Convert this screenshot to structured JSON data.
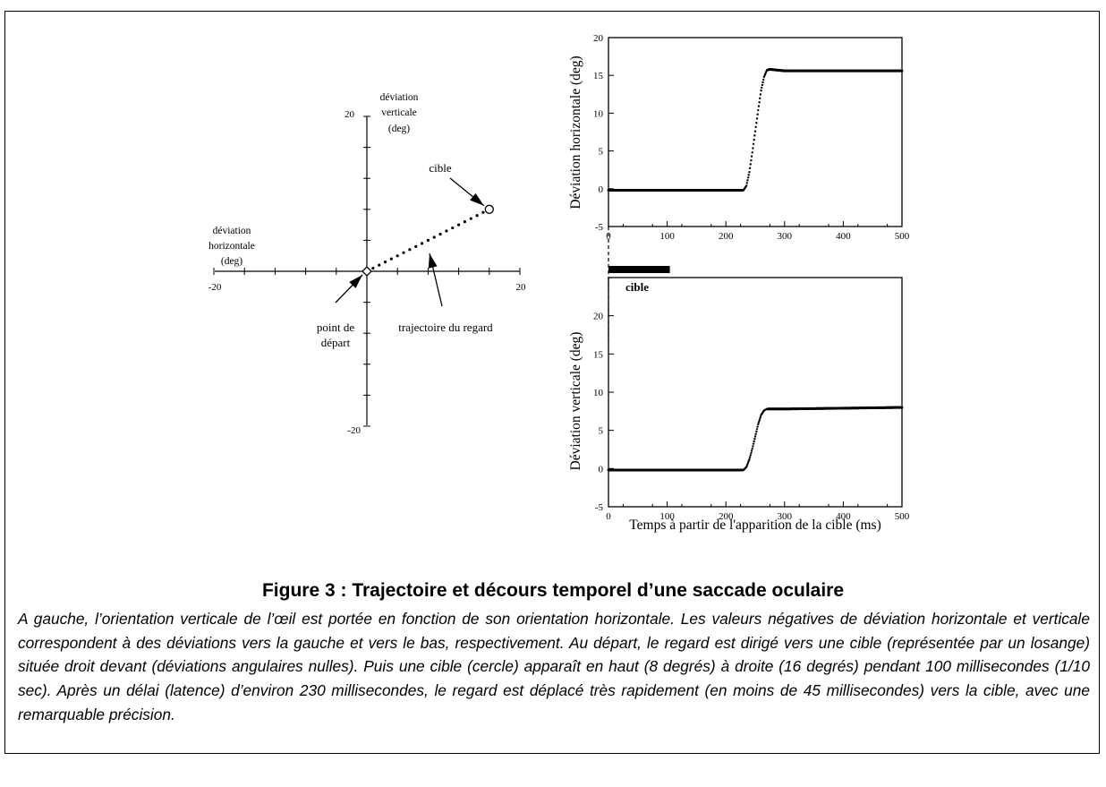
{
  "figure": {
    "title": "Figure 3 : Trajectoire et décours temporel d’une saccade oculaire",
    "caption": "A gauche, l’orientation verticale de l’œil est portée en fonction de son orientation horizontale. Les valeurs négatives de déviation horizontale et verticale correspondent à des déviations vers la gauche et vers le bas, respectivement. Au départ, le regard est dirigé vers une cible (représentée par un losange) située droit devant (déviations angulaires nulles). Puis une cible (cercle) apparaît en haut (8 degrés) à droite (16 degrés) pendant 100 millisecondes (1/10 sec). Après un délai (latence) d’environ 230 millisecondes, le regard est déplacé très rapidement (en moins de 45 millisecondes) vers la cible, avec une remarquable précision."
  },
  "chart_data": [
    {
      "type": "scatter",
      "xlabel_lines": [
        "déviation",
        "horizontale",
        "(deg)"
      ],
      "ylabel_lines": [
        "déviation",
        "verticale",
        "(deg)"
      ],
      "xlim": [
        -20,
        20
      ],
      "ylim": [
        -20,
        20
      ],
      "tick_labels": {
        "x_min": "-20",
        "x_max": "20",
        "y_max": "20",
        "y_min": "-20"
      },
      "series": [
        {
          "x": [
            0,
            0.8,
            1.6,
            2.4,
            3.2,
            4.0,
            4.8,
            5.6,
            6.4,
            7.2,
            8.0,
            8.8,
            9.6,
            10.4,
            11.2,
            12.0,
            12.8,
            13.6,
            14.4,
            15.2,
            16.0
          ],
          "y": [
            0,
            0.4,
            0.8,
            1.2,
            1.6,
            2.0,
            2.4,
            2.8,
            3.2,
            3.6,
            4.0,
            4.4,
            4.8,
            5.2,
            5.6,
            6.0,
            6.4,
            6.8,
            7.2,
            7.6,
            8.0
          ]
        }
      ],
      "start_point": {
        "x": 0,
        "y": 0
      },
      "target_point": {
        "x": 16,
        "y": 8
      },
      "annotations": {
        "target": "cible",
        "start_lines": [
          "point de",
          "départ"
        ],
        "trajectory": "trajectoire du regard"
      }
    },
    {
      "type": "line",
      "ylabel": "Déviation horizontale (deg)",
      "xlim": [
        0,
        500
      ],
      "ylim": [
        -5,
        20
      ],
      "x_ticks": [
        "0",
        "100",
        "200",
        "300",
        "400",
        "500"
      ],
      "y_ticks": [
        "-5",
        "0",
        "5",
        "10",
        "15",
        "20"
      ],
      "series": [
        {
          "x": [
            0,
            230,
            235,
            240,
            245,
            250,
            255,
            260,
            265,
            270,
            275,
            300,
            400,
            500
          ],
          "y": [
            -0.2,
            -0.2,
            0.4,
            2.2,
            4.8,
            7.6,
            10.4,
            13.0,
            14.8,
            15.7,
            15.8,
            15.6,
            15.6,
            15.6
          ]
        }
      ]
    },
    {
      "type": "line",
      "ylabel": "Déviation verticale (deg)",
      "xlabel": "Temps à partir de l'apparition de la cible (ms)",
      "xlim": [
        0,
        500
      ],
      "ylim": [
        -5,
        25
      ],
      "x_ticks": [
        "0",
        "100",
        "200",
        "300",
        "400",
        "500"
      ],
      "y_ticks": [
        "-5",
        "0",
        "5",
        "10",
        "15",
        "20"
      ],
      "series": [
        {
          "x": [
            0,
            230,
            235,
            240,
            245,
            250,
            255,
            260,
            265,
            270,
            300,
            400,
            500
          ],
          "y": [
            -0.2,
            -0.2,
            0.2,
            1.2,
            2.6,
            4.2,
            5.8,
            7.0,
            7.6,
            7.8,
            7.8,
            7.9,
            8.0
          ]
        }
      ],
      "stimulus": {
        "label": "cible",
        "x_start": 0,
        "x_end": 100
      }
    }
  ]
}
